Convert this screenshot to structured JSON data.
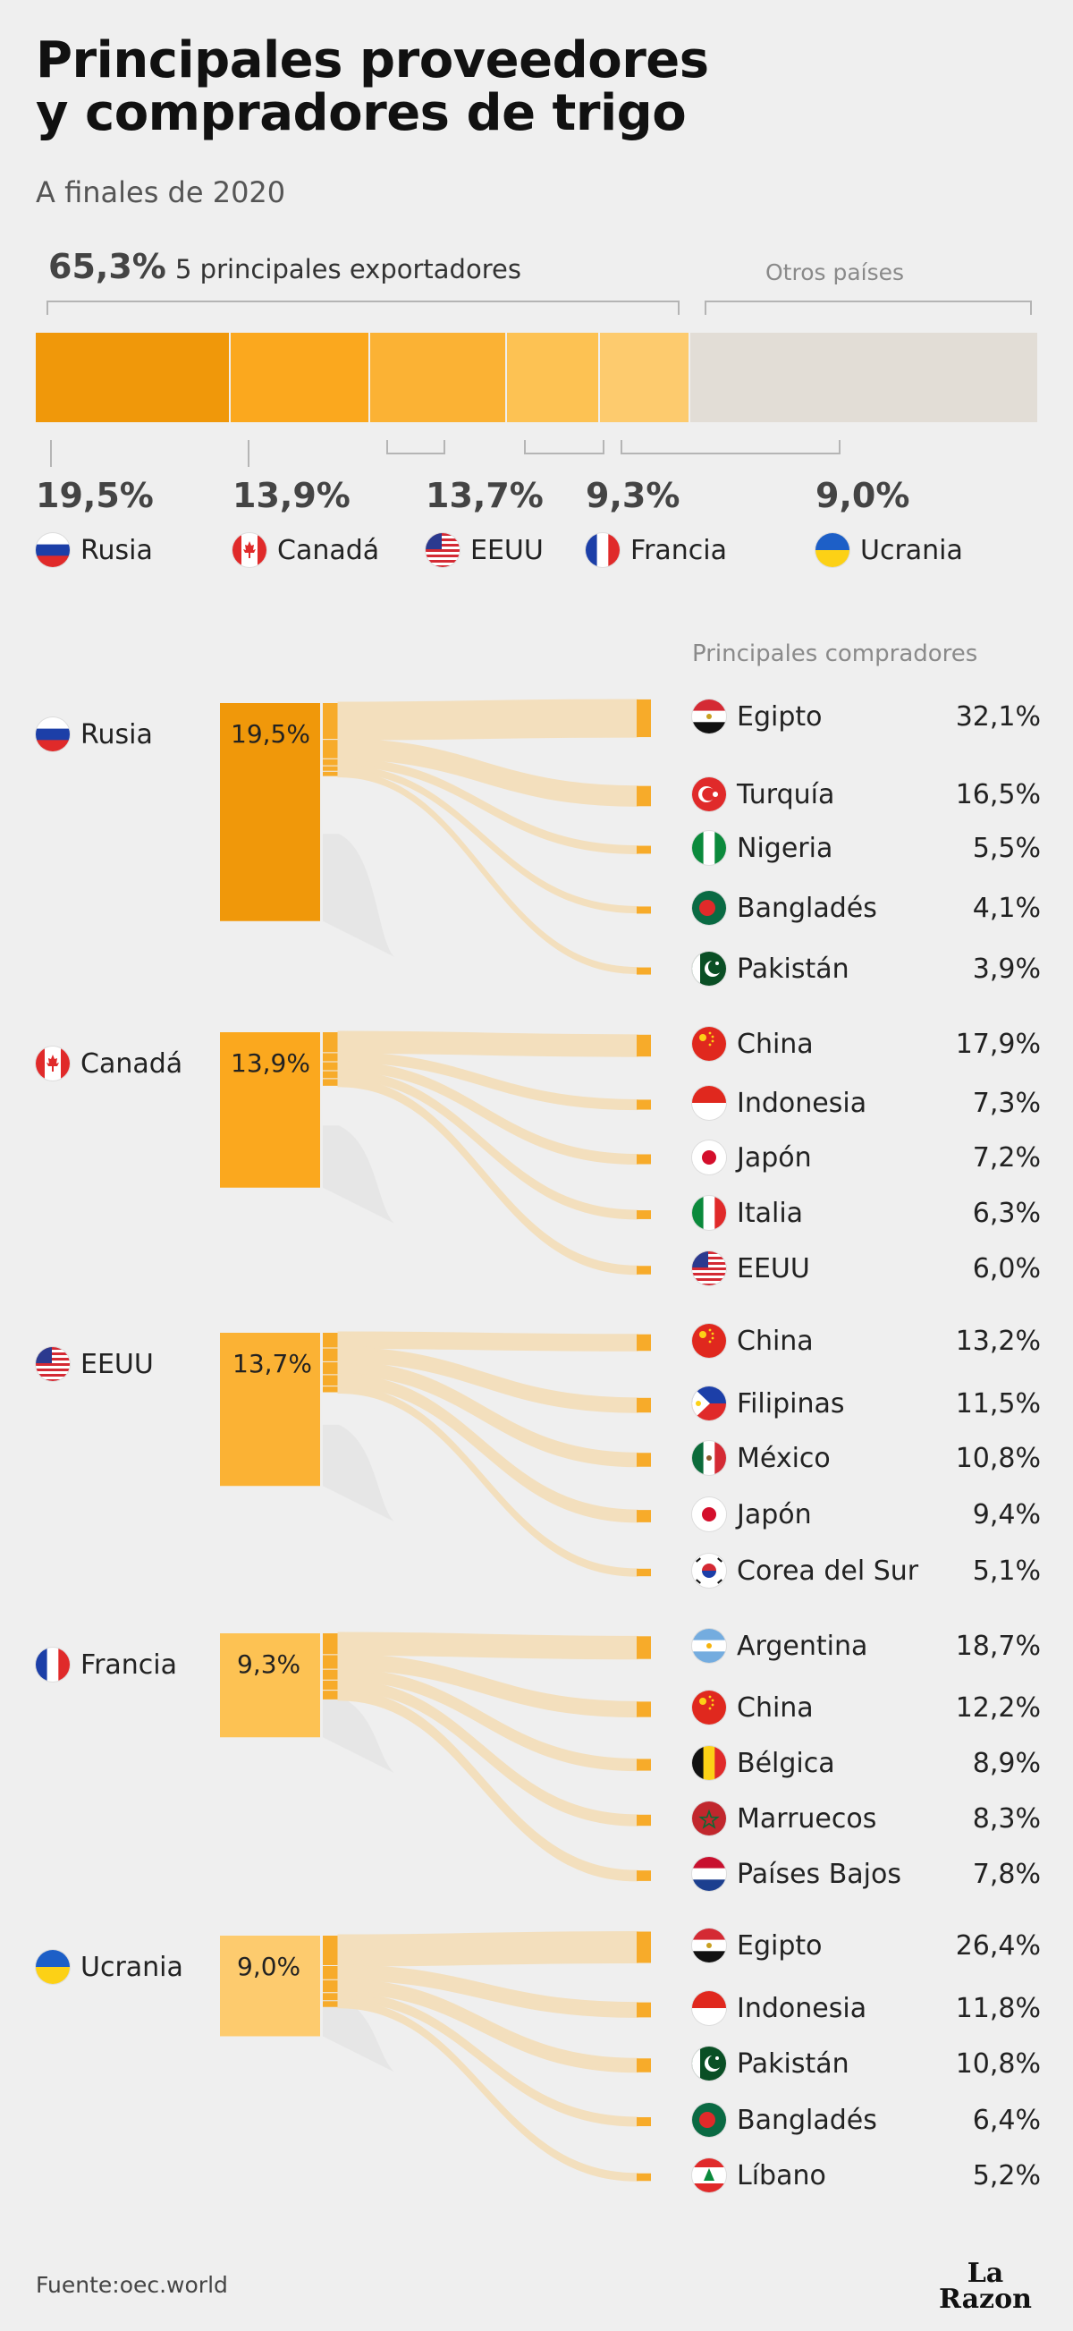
{
  "title_line1": "Principales proveedores",
  "title_line2": "y compradores de trigo",
  "subtitle": "A finales de 2020",
  "top_share": "65,3%",
  "top_share_label": "5 principales exportadores",
  "otros_label": "Otros países",
  "buyers_header": "Principales compradores",
  "source": "Fuente:oec.world",
  "brand_line1": "La",
  "brand_line2": "Razon",
  "colors": {
    "rusia": "#f0980a",
    "canada": "#fba81e",
    "eeuu": "#fbb234",
    "francia": "#fdc253",
    "ucrania": "#fdcb6e",
    "otros": "#e2ddd6",
    "flow": "#f3dfbd",
    "buyer_bar": "#f7ab2a"
  },
  "chart_data": {
    "type": "bar",
    "title": "Principales proveedores y compradores de trigo",
    "exporters": [
      {
        "name": "Rusia",
        "share": 19.5,
        "label": "19,5%",
        "flag": "russia-flag"
      },
      {
        "name": "Canadá",
        "share": 13.9,
        "label": "13,9%",
        "flag": "canada-flag"
      },
      {
        "name": "EEUU",
        "share": 13.7,
        "label": "13,7%",
        "flag": "usa-flag"
      },
      {
        "name": "Francia",
        "share": 9.3,
        "label": "9,3%",
        "flag": "france-flag"
      },
      {
        "name": "Ucrania",
        "share": 9.0,
        "label": "9,0%",
        "flag": "ukraine-flag"
      }
    ],
    "others_share": 34.7,
    "buyers": [
      {
        "exporter": "Rusia",
        "items": [
          {
            "name": "Egipto",
            "value": 32.1,
            "label": "32,1%",
            "flag": "egypt-flag"
          },
          {
            "name": "Turquía",
            "value": 16.5,
            "label": "16,5%",
            "flag": "turkey-flag"
          },
          {
            "name": "Nigeria",
            "value": 5.5,
            "label": "5,5%",
            "flag": "nigeria-flag"
          },
          {
            "name": "Bangladés",
            "value": 4.1,
            "label": "4,1%",
            "flag": "bangladesh-flag"
          },
          {
            "name": "Pakistán",
            "value": 3.9,
            "label": "3,9%",
            "flag": "pakistan-flag"
          }
        ]
      },
      {
        "exporter": "Canadá",
        "items": [
          {
            "name": "China",
            "value": 17.9,
            "label": "17,9%",
            "flag": "china-flag"
          },
          {
            "name": "Indonesia",
            "value": 7.3,
            "label": "7,3%",
            "flag": "indonesia-flag"
          },
          {
            "name": "Japón",
            "value": 7.2,
            "label": "7,2%",
            "flag": "japan-flag"
          },
          {
            "name": "Italia",
            "value": 6.3,
            "label": "6,3%",
            "flag": "italy-flag"
          },
          {
            "name": "EEUU",
            "value": 6.0,
            "label": "6,0%",
            "flag": "usa-flag"
          }
        ]
      },
      {
        "exporter": "EEUU",
        "items": [
          {
            "name": "China",
            "value": 13.2,
            "label": "13,2%",
            "flag": "china-flag"
          },
          {
            "name": "Filipinas",
            "value": 11.5,
            "label": "11,5%",
            "flag": "philippines-flag"
          },
          {
            "name": "México",
            "value": 10.8,
            "label": "10,8%",
            "flag": "mexico-flag"
          },
          {
            "name": "Japón",
            "value": 9.4,
            "label": "9,4%",
            "flag": "japan-flag"
          },
          {
            "name": "Corea del Sur",
            "value": 5.1,
            "label": "5,1%",
            "flag": "south-korea-flag"
          }
        ]
      },
      {
        "exporter": "Francia",
        "items": [
          {
            "name": "Argentina",
            "value": 18.7,
            "label": "18,7%",
            "flag": "argentina-flag"
          },
          {
            "name": "China",
            "value": 12.2,
            "label": "12,2%",
            "flag": "china-flag"
          },
          {
            "name": "Bélgica",
            "value": 8.9,
            "label": "8,9%",
            "flag": "belgium-flag"
          },
          {
            "name": "Marruecos",
            "value": 8.3,
            "label": "8,3%",
            "flag": "morocco-flag"
          },
          {
            "name": "Países Bajos",
            "value": 7.8,
            "label": "7,8%",
            "flag": "netherlands-flag"
          }
        ]
      },
      {
        "exporter": "Ucrania",
        "items": [
          {
            "name": "Egipto",
            "value": 26.4,
            "label": "26,4%",
            "flag": "egypt-flag"
          },
          {
            "name": "Indonesia",
            "value": 11.8,
            "label": "11,8%",
            "flag": "indonesia-flag"
          },
          {
            "name": "Pakistán",
            "value": 10.8,
            "label": "10,8%",
            "flag": "pakistan-flag"
          },
          {
            "name": "Bangladés",
            "value": 6.4,
            "label": "6,4%",
            "flag": "bangladesh-flag"
          },
          {
            "name": "Líbano",
            "value": 5.2,
            "label": "5,2%",
            "flag": "lebanon-flag"
          }
        ]
      }
    ]
  }
}
